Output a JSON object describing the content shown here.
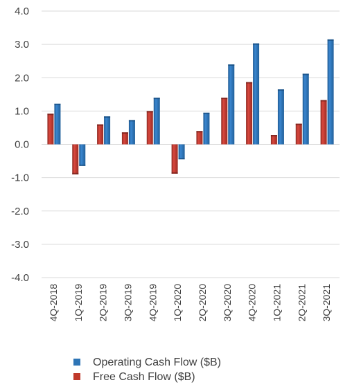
{
  "chart_data": {
    "type": "bar",
    "categories": [
      "4Q-2018",
      "1Q-2019",
      "2Q-2019",
      "3Q-2019",
      "4Q-2019",
      "1Q-2020",
      "2Q-2020",
      "3Q-2020",
      "4Q-2020",
      "1Q-2021",
      "2Q-2021",
      "3Q-2021"
    ],
    "series": [
      {
        "name": "Free Cash Flow ($B)",
        "color": "#c0392b",
        "values": [
          0.92,
          -0.9,
          0.6,
          0.36,
          1.0,
          -0.88,
          0.4,
          1.4,
          1.87,
          0.28,
          0.62,
          1.33
        ]
      },
      {
        "name": "Operating Cash Flow ($B)",
        "color": "#2e75b6",
        "values": [
          1.22,
          -0.65,
          0.84,
          0.73,
          1.4,
          -0.45,
          0.95,
          2.4,
          3.03,
          1.65,
          2.12,
          3.15
        ]
      }
    ],
    "yticks": [
      "4.0",
      "3.0",
      "2.0",
      "1.0",
      "0.0",
      "-1.0",
      "-2.0",
      "-3.0",
      "-4.0"
    ],
    "ylim": [
      -4,
      4
    ],
    "grid": true,
    "legend_position": "bottom",
    "legend": [
      "Operating Cash Flow ($B)",
      "Free Cash Flow ($B)"
    ],
    "title": "",
    "xlabel": "",
    "ylabel": ""
  }
}
